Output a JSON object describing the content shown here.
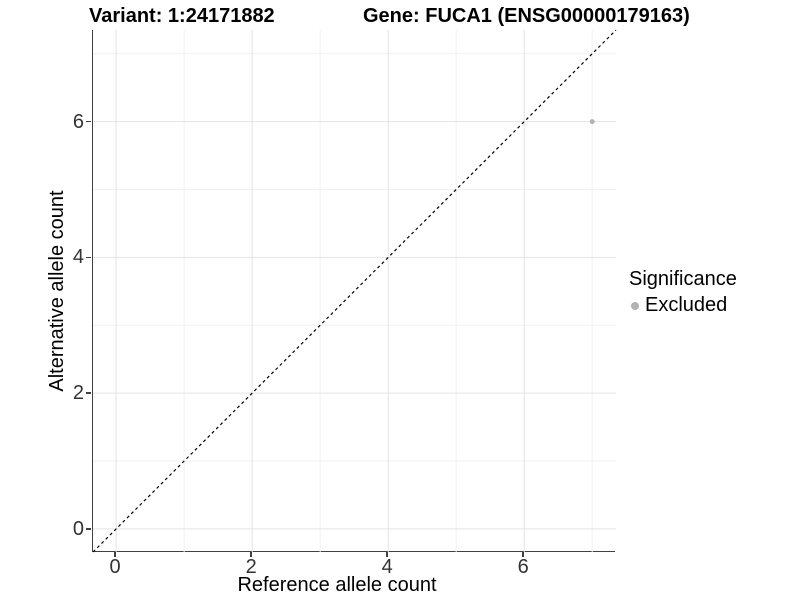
{
  "title": {
    "variant_label": "Variant: 1:24171882",
    "gene_label": "Gene: FUCA1 (ENSG00000179163)"
  },
  "axes": {
    "x_label": "Reference allele count",
    "y_label": "Alternative allele count",
    "x_tick_labels": [
      "0",
      "2",
      "4",
      "6"
    ],
    "y_tick_labels": [
      "0",
      "2",
      "4",
      "6"
    ]
  },
  "legend": {
    "title": "Significance",
    "position": "right",
    "items": [
      {
        "label": "Excluded",
        "swatch_color": "#b3b3b3"
      }
    ]
  },
  "colors": {
    "background": "#ffffff",
    "grid_major": "#e4e4e4",
    "grid_minor": "#f1f1f1",
    "axis_line": "#404040",
    "tick_label": "#333333",
    "title_text": "#000000",
    "point": "#b3b3b3",
    "reference_line": "#000000"
  },
  "chart_data": {
    "type": "scatter",
    "title": "Variant: 1:24171882 — Gene: FUCA1 (ENSG00000179163)",
    "xlabel": "Reference allele count",
    "ylabel": "Alternative allele count",
    "xlim": [
      -0.34,
      7.35
    ],
    "ylim": [
      -0.34,
      7.35
    ],
    "x_major_ticks": [
      0,
      2,
      4,
      6
    ],
    "x_minor_ticks": [
      1,
      3,
      5,
      7
    ],
    "y_major_ticks": [
      0,
      2,
      4,
      6
    ],
    "y_minor_ticks": [
      1,
      3,
      5,
      7
    ],
    "grid": "major and minor, light gray on white panel",
    "legend_position": "right",
    "series": [
      {
        "name": "Excluded",
        "color": "#b3b3b3",
        "marker": "circle",
        "marker_radius_px": 2.5,
        "points": [
          {
            "x": 7,
            "y": 6
          }
        ]
      }
    ],
    "reference_line": {
      "kind": "identity y = x",
      "style": "dashed",
      "color": "#000000",
      "from": [
        -0.34,
        -0.34
      ],
      "to": [
        7.35,
        7.35
      ]
    }
  }
}
